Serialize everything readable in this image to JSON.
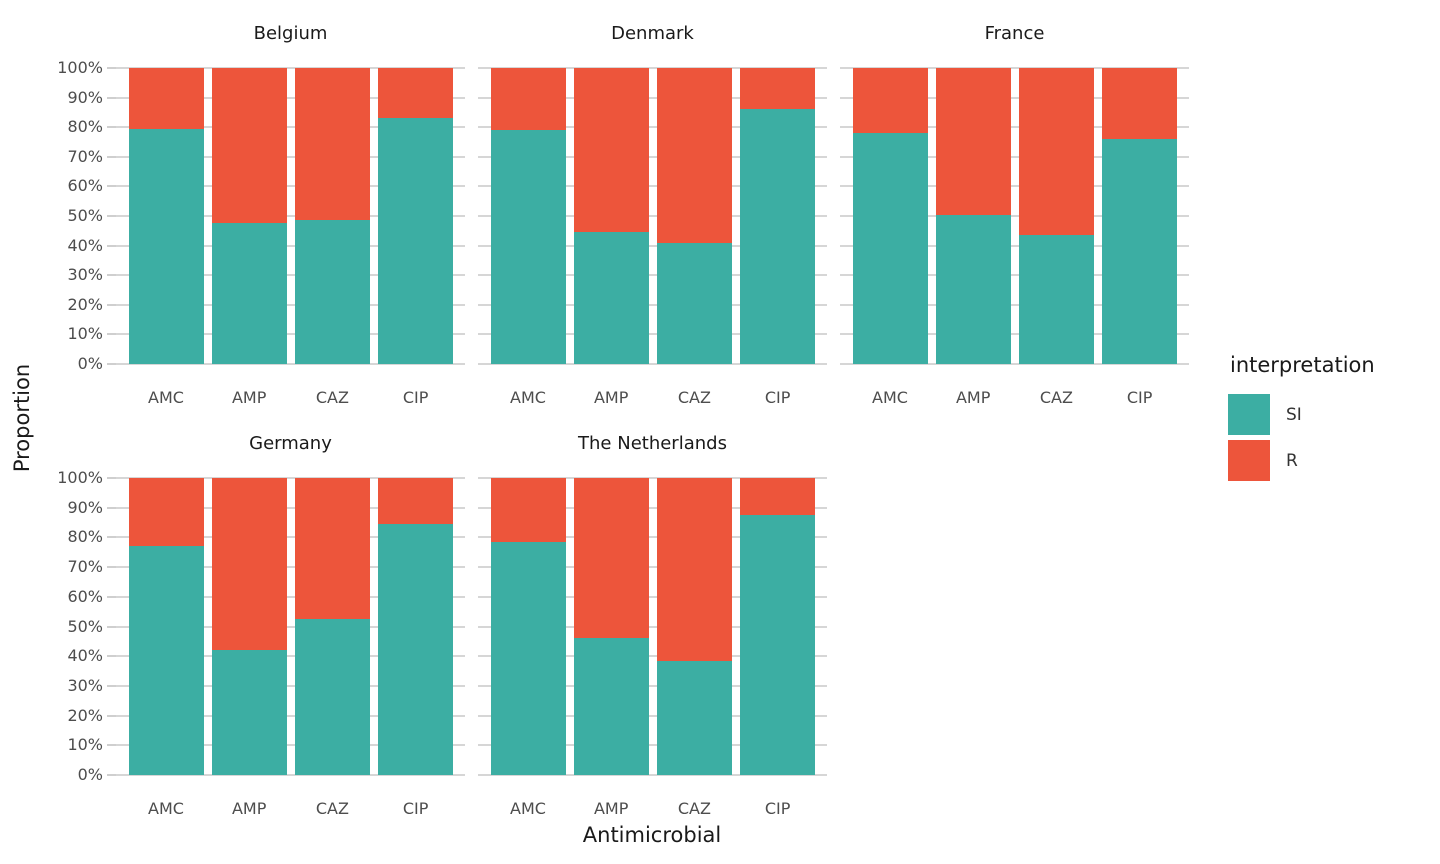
{
  "figure": {
    "y_axis": {
      "title": "Proportion",
      "ticks": [
        "0%",
        "10%",
        "20%",
        "30%",
        "40%",
        "50%",
        "60%",
        "70%",
        "80%",
        "90%",
        "100%"
      ]
    },
    "x_axis": {
      "title": "Antimicrobial"
    },
    "legend": {
      "title": "interpretation",
      "items": [
        {
          "label": "SI",
          "color": "#3CAEA3"
        },
        {
          "label": "R",
          "color": "#ED553B"
        }
      ]
    }
  },
  "chart_data": {
    "type": "bar",
    "variant": "stacked-percent",
    "title": "",
    "xlabel": "Antimicrobial",
    "ylabel": "Proportion",
    "ylim": [
      0,
      100
    ],
    "y_tick_step": 10,
    "grid": "horizontal-major-only",
    "legend_position": "right",
    "categories": [
      "AMC",
      "AMP",
      "CAZ",
      "CIP"
    ],
    "series_names": [
      "SI",
      "R"
    ],
    "series_colors": {
      "SI": "#3CAEA3",
      "R": "#ED553B"
    },
    "facets": [
      {
        "title": "Belgium",
        "series": [
          {
            "name": "SI",
            "values": [
              79.5,
              47.5,
              48.5,
              83.0
            ]
          },
          {
            "name": "R",
            "values": [
              20.5,
              52.5,
              51.5,
              17.0
            ]
          }
        ]
      },
      {
        "title": "Denmark",
        "series": [
          {
            "name": "SI",
            "values": [
              79.0,
              44.5,
              41.0,
              86.0
            ]
          },
          {
            "name": "R",
            "values": [
              21.0,
              55.5,
              59.0,
              14.0
            ]
          }
        ]
      },
      {
        "title": "France",
        "series": [
          {
            "name": "SI",
            "values": [
              78.0,
              50.5,
              43.5,
              76.0
            ]
          },
          {
            "name": "R",
            "values": [
              22.0,
              49.5,
              56.5,
              24.0
            ]
          }
        ]
      },
      {
        "title": "Germany",
        "series": [
          {
            "name": "SI",
            "values": [
              77.0,
              42.0,
              52.5,
              84.5
            ]
          },
          {
            "name": "R",
            "values": [
              23.0,
              58.0,
              47.5,
              15.5
            ]
          }
        ]
      },
      {
        "title": "The Netherlands",
        "series": [
          {
            "name": "SI",
            "values": [
              78.5,
              46.0,
              38.5,
              87.5
            ]
          },
          {
            "name": "R",
            "values": [
              21.5,
              54.0,
              61.5,
              12.5
            ]
          }
        ]
      }
    ]
  }
}
